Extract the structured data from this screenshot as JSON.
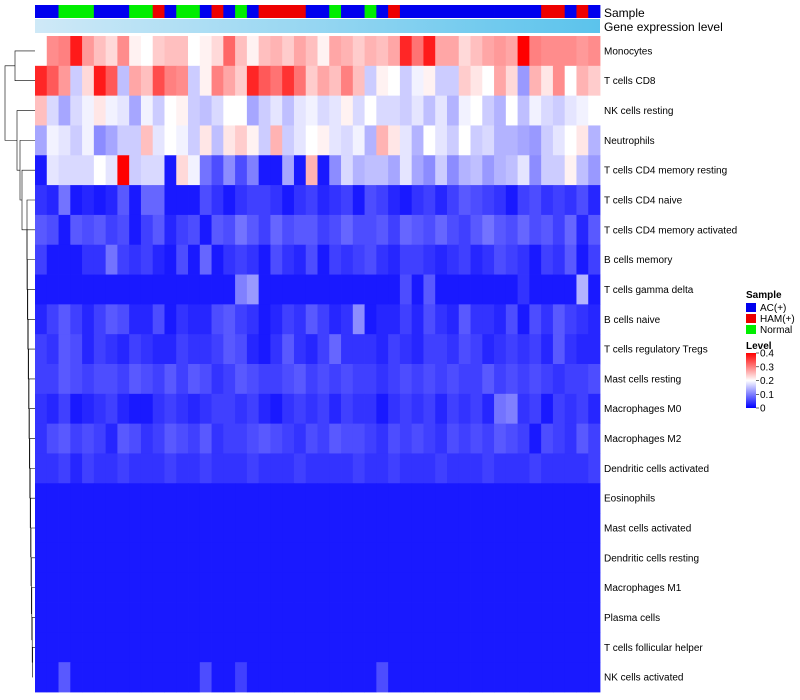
{
  "chart_data": {
    "type": "heatmap",
    "top_annotation_labels": [
      "Sample",
      "Gene expression level"
    ],
    "row_labels": [
      "Monocytes",
      "T cells CD8",
      "NK cells resting",
      "Neutrophils",
      "T cells CD4 memory resting",
      "T cells CD4 naive",
      "T cells CD4 memory activated",
      "B cells memory",
      "T cells gamma delta",
      "B cells naive",
      "T cells regulatory  Tregs",
      "Mast cells resting",
      "Macrophages M0",
      "Macrophages M2",
      "Dendritic cells activated",
      "Eosinophils",
      "Mast cells activated",
      "Dendritic cells resting",
      "Macrophages M1",
      "Plasma cells",
      "T cells follicular helper",
      "NK cells activated"
    ],
    "samples": [
      "AC",
      "AC",
      "N",
      "N",
      "N",
      "AC",
      "AC",
      "AC",
      "N",
      "N",
      "HAM",
      "AC",
      "N",
      "N",
      "AC",
      "HAM",
      "AC",
      "N",
      "AC",
      "HAM",
      "HAM",
      "HAM",
      "HAM",
      "AC",
      "AC",
      "N",
      "AC",
      "AC",
      "N",
      "AC",
      "HAM",
      "AC",
      "AC",
      "AC",
      "AC",
      "AC",
      "AC",
      "AC",
      "AC",
      "AC",
      "AC",
      "AC",
      "AC",
      "HAM",
      "HAM",
      "AC",
      "HAM",
      "AC"
    ],
    "sample_color_map": {
      "AC": "#0000ee",
      "HAM": "#ee0000",
      "N": "#00ee00"
    },
    "legend_sample": {
      "title": "Sample",
      "items": [
        {
          "label": "AC(+)",
          "color": "#0000ee"
        },
        {
          "label": "HAM(+)",
          "color": "#ee0000"
        },
        {
          "label": "Normal",
          "color": "#00ee00"
        }
      ]
    },
    "legend_level": {
      "title": "Level",
      "ticks": [
        "0.4",
        "0.3",
        "0.2",
        "0.1",
        "0"
      ],
      "tick_values": [
        0.4,
        0.3,
        0.2,
        0.1,
        0
      ],
      "range": [
        0,
        0.4
      ],
      "colors": [
        "#0000ff",
        "#ffffff",
        "#ff0000"
      ]
    },
    "gene_expression_bar": {
      "light": "#cfe9f7",
      "dark": "#5bc3ec"
    },
    "values": [
      [
        0.2,
        0.29,
        0.3,
        0.38,
        0.28,
        0.25,
        0.23,
        0.29,
        0.21,
        0.2,
        0.24,
        0.25,
        0.25,
        0.2,
        0.21,
        0.23,
        0.32,
        0.25,
        0.21,
        0.25,
        0.26,
        0.24,
        0.27,
        0.25,
        0.21,
        0.27,
        0.26,
        0.24,
        0.26,
        0.25,
        0.27,
        0.37,
        0.31,
        0.38,
        0.27,
        0.27,
        0.23,
        0.25,
        0.27,
        0.28,
        0.27,
        0.4,
        0.3,
        0.29,
        0.29,
        0.29,
        0.28,
        0.29
      ],
      [
        0.37,
        0.33,
        0.28,
        0.16,
        0.23,
        0.38,
        0.33,
        0.15,
        0.27,
        0.25,
        0.34,
        0.3,
        0.29,
        0.16,
        0.21,
        0.3,
        0.27,
        0.24,
        0.37,
        0.33,
        0.31,
        0.36,
        0.31,
        0.24,
        0.27,
        0.25,
        0.3,
        0.25,
        0.16,
        0.21,
        0.2,
        0.16,
        0.19,
        0.21,
        0.16,
        0.16,
        0.24,
        0.22,
        0.2,
        0.27,
        0.23,
        0.12,
        0.26,
        0.22,
        0.29,
        0.2,
        0.26,
        0.24
      ],
      [
        0.25,
        0.17,
        0.13,
        0.17,
        0.19,
        0.22,
        0.19,
        0.18,
        0.13,
        0.19,
        0.16,
        0.2,
        0.21,
        0.16,
        0.15,
        0.17,
        0.2,
        0.2,
        0.13,
        0.16,
        0.18,
        0.15,
        0.18,
        0.19,
        0.17,
        0.18,
        0.21,
        0.17,
        0.2,
        0.17,
        0.17,
        0.16,
        0.18,
        0.15,
        0.18,
        0.14,
        0.19,
        0.2,
        0.16,
        0.14,
        0.2,
        0.15,
        0.19,
        0.17,
        0.16,
        0.18,
        0.19,
        0.2
      ],
      [
        0.13,
        0.19,
        0.18,
        0.16,
        0.19,
        0.11,
        0.13,
        0.16,
        0.16,
        0.25,
        0.18,
        0.2,
        0.19,
        0.16,
        0.22,
        0.15,
        0.22,
        0.24,
        0.21,
        0.16,
        0.26,
        0.16,
        0.18,
        0.2,
        0.21,
        0.18,
        0.17,
        0.19,
        0.14,
        0.26,
        0.22,
        0.18,
        0.14,
        0.2,
        0.18,
        0.16,
        0.2,
        0.16,
        0.17,
        0.14,
        0.14,
        0.13,
        0.12,
        0.16,
        0.18,
        0.2,
        0.22,
        0.14
      ],
      [
        0.02,
        0.18,
        0.17,
        0.17,
        0.17,
        0.2,
        0.18,
        0.4,
        0.16,
        0.17,
        0.17,
        0.02,
        0.23,
        0.19,
        0.09,
        0.06,
        0.11,
        0.06,
        0.1,
        0.02,
        0.02,
        0.13,
        0.02,
        0.26,
        0.02,
        0.11,
        0.17,
        0.14,
        0.15,
        0.15,
        0.13,
        0.18,
        0.13,
        0.11,
        0.16,
        0.11,
        0.14,
        0.15,
        0.12,
        0.14,
        0.15,
        0.18,
        0.11,
        0.16,
        0.16,
        0.21,
        0.15,
        0.12
      ],
      [
        0.04,
        0.03,
        0.09,
        0.02,
        0.03,
        0.02,
        0.03,
        0.07,
        0.02,
        0.08,
        0.08,
        0.02,
        0.02,
        0.02,
        0.06,
        0.04,
        0.02,
        0.04,
        0.05,
        0.05,
        0.04,
        0.02,
        0.04,
        0.05,
        0.03,
        0.04,
        0.05,
        0.02,
        0.06,
        0.05,
        0.03,
        0.02,
        0.04,
        0.05,
        0.03,
        0.05,
        0.07,
        0.06,
        0.05,
        0.04,
        0.02,
        0.05,
        0.06,
        0.04,
        0.05,
        0.04,
        0.06,
        0.03
      ],
      [
        0.07,
        0.06,
        0.02,
        0.07,
        0.06,
        0.07,
        0.05,
        0.06,
        0.02,
        0.05,
        0.07,
        0.03,
        0.05,
        0.06,
        0.02,
        0.07,
        0.06,
        0.09,
        0.07,
        0.05,
        0.08,
        0.06,
        0.07,
        0.07,
        0.05,
        0.06,
        0.08,
        0.06,
        0.06,
        0.07,
        0.05,
        0.08,
        0.07,
        0.06,
        0.08,
        0.06,
        0.05,
        0.07,
        0.09,
        0.07,
        0.06,
        0.08,
        0.06,
        0.07,
        0.05,
        0.08,
        0.03,
        0.07
      ],
      [
        0.05,
        0.02,
        0.02,
        0.02,
        0.04,
        0.04,
        0.09,
        0.05,
        0.04,
        0.05,
        0.03,
        0.02,
        0.06,
        0.02,
        0.08,
        0.02,
        0.04,
        0.05,
        0.04,
        0.02,
        0.06,
        0.04,
        0.03,
        0.06,
        0.02,
        0.05,
        0.04,
        0.05,
        0.06,
        0.04,
        0.03,
        0.05,
        0.05,
        0.04,
        0.03,
        0.04,
        0.05,
        0.03,
        0.04,
        0.06,
        0.05,
        0.04,
        0.02,
        0.05,
        0.04,
        0.07,
        0.02,
        0.05
      ],
      [
        0.02,
        0.02,
        0.02,
        0.02,
        0.02,
        0.02,
        0.02,
        0.02,
        0.02,
        0.02,
        0.02,
        0.02,
        0.02,
        0.02,
        0.02,
        0.02,
        0.02,
        0.1,
        0.12,
        0.02,
        0.02,
        0.02,
        0.02,
        0.02,
        0.02,
        0.02,
        0.02,
        0.02,
        0.02,
        0.02,
        0.02,
        0.06,
        0.02,
        0.07,
        0.02,
        0.02,
        0.02,
        0.02,
        0.02,
        0.02,
        0.02,
        0.04,
        0.02,
        0.02,
        0.02,
        0.02,
        0.14,
        0.02
      ],
      [
        0.03,
        0.05,
        0.07,
        0.05,
        0.03,
        0.05,
        0.07,
        0.06,
        0.03,
        0.03,
        0.06,
        0.02,
        0.04,
        0.03,
        0.03,
        0.06,
        0.07,
        0.05,
        0.04,
        0.02,
        0.03,
        0.05,
        0.04,
        0.07,
        0.05,
        0.03,
        0.04,
        0.11,
        0.02,
        0.03,
        0.03,
        0.05,
        0.03,
        0.06,
        0.04,
        0.03,
        0.07,
        0.04,
        0.04,
        0.03,
        0.06,
        0.02,
        0.06,
        0.04,
        0.07,
        0.05,
        0.04,
        0.03
      ],
      [
        0.05,
        0.04,
        0.07,
        0.06,
        0.03,
        0.05,
        0.04,
        0.03,
        0.05,
        0.04,
        0.03,
        0.03,
        0.05,
        0.04,
        0.04,
        0.05,
        0.07,
        0.06,
        0.03,
        0.02,
        0.04,
        0.07,
        0.04,
        0.03,
        0.05,
        0.08,
        0.04,
        0.04,
        0.04,
        0.03,
        0.05,
        0.04,
        0.03,
        0.05,
        0.05,
        0.04,
        0.06,
        0.05,
        0.03,
        0.04,
        0.05,
        0.04,
        0.05,
        0.03,
        0.07,
        0.04,
        0.03,
        0.03
      ],
      [
        0.05,
        0.05,
        0.07,
        0.06,
        0.05,
        0.06,
        0.06,
        0.05,
        0.07,
        0.06,
        0.05,
        0.07,
        0.05,
        0.07,
        0.06,
        0.04,
        0.05,
        0.07,
        0.06,
        0.05,
        0.05,
        0.06,
        0.07,
        0.05,
        0.06,
        0.05,
        0.06,
        0.05,
        0.05,
        0.04,
        0.05,
        0.06,
        0.05,
        0.06,
        0.05,
        0.06,
        0.05,
        0.05,
        0.07,
        0.05,
        0.06,
        0.05,
        0.06,
        0.05,
        0.04,
        0.05,
        0.05,
        0.06
      ],
      [
        0.04,
        0.03,
        0.05,
        0.02,
        0.03,
        0.04,
        0.05,
        0.03,
        0.02,
        0.02,
        0.04,
        0.05,
        0.04,
        0.03,
        0.04,
        0.05,
        0.05,
        0.04,
        0.05,
        0.03,
        0.02,
        0.04,
        0.05,
        0.04,
        0.05,
        0.03,
        0.05,
        0.04,
        0.04,
        0.02,
        0.04,
        0.05,
        0.04,
        0.05,
        0.03,
        0.05,
        0.04,
        0.05,
        0.03,
        0.09,
        0.1,
        0.04,
        0.05,
        0.02,
        0.05,
        0.04,
        0.05,
        0.03
      ],
      [
        0.04,
        0.06,
        0.07,
        0.05,
        0.06,
        0.05,
        0.03,
        0.07,
        0.06,
        0.04,
        0.05,
        0.07,
        0.06,
        0.05,
        0.07,
        0.04,
        0.05,
        0.05,
        0.06,
        0.07,
        0.06,
        0.05,
        0.04,
        0.06,
        0.05,
        0.07,
        0.06,
        0.06,
        0.05,
        0.04,
        0.06,
        0.05,
        0.06,
        0.05,
        0.04,
        0.06,
        0.05,
        0.06,
        0.05,
        0.07,
        0.06,
        0.05,
        0.02,
        0.06,
        0.05,
        0.04,
        0.07,
        0.05
      ],
      [
        0.04,
        0.04,
        0.05,
        0.03,
        0.05,
        0.04,
        0.04,
        0.05,
        0.04,
        0.04,
        0.04,
        0.05,
        0.04,
        0.04,
        0.05,
        0.04,
        0.04,
        0.04,
        0.05,
        0.04,
        0.04,
        0.04,
        0.05,
        0.04,
        0.04,
        0.04,
        0.04,
        0.05,
        0.04,
        0.04,
        0.05,
        0.04,
        0.04,
        0.04,
        0.05,
        0.04,
        0.04,
        0.04,
        0.05,
        0.04,
        0.04,
        0.04,
        0.05,
        0.04,
        0.04,
        0.04,
        0.04,
        0.05
      ],
      [
        0.02,
        0.02,
        0.02,
        0.02,
        0.02,
        0.02,
        0.02,
        0.02,
        0.02,
        0.02,
        0.02,
        0.02,
        0.02,
        0.02,
        0.02,
        0.02,
        0.02,
        0.02,
        0.02,
        0.02,
        0.02,
        0.02,
        0.02,
        0.02,
        0.02,
        0.02,
        0.02,
        0.02,
        0.02,
        0.02,
        0.02,
        0.02,
        0.02,
        0.02,
        0.02,
        0.02,
        0.02,
        0.02,
        0.02,
        0.02,
        0.02,
        0.02,
        0.02,
        0.02,
        0.02,
        0.02,
        0.02,
        0.02
      ],
      [
        0.02,
        0.02,
        0.02,
        0.02,
        0.02,
        0.02,
        0.02,
        0.02,
        0.02,
        0.02,
        0.02,
        0.02,
        0.02,
        0.02,
        0.02,
        0.02,
        0.02,
        0.02,
        0.02,
        0.02,
        0.02,
        0.02,
        0.02,
        0.02,
        0.02,
        0.02,
        0.02,
        0.02,
        0.02,
        0.02,
        0.02,
        0.02,
        0.02,
        0.02,
        0.02,
        0.02,
        0.02,
        0.02,
        0.02,
        0.02,
        0.02,
        0.02,
        0.02,
        0.02,
        0.02,
        0.02,
        0.02,
        0.02
      ],
      [
        0.02,
        0.02,
        0.02,
        0.02,
        0.02,
        0.02,
        0.02,
        0.02,
        0.02,
        0.02,
        0.02,
        0.02,
        0.02,
        0.02,
        0.02,
        0.02,
        0.02,
        0.02,
        0.02,
        0.02,
        0.02,
        0.02,
        0.02,
        0.02,
        0.02,
        0.02,
        0.02,
        0.02,
        0.02,
        0.02,
        0.02,
        0.02,
        0.02,
        0.02,
        0.02,
        0.02,
        0.02,
        0.02,
        0.02,
        0.02,
        0.02,
        0.02,
        0.02,
        0.02,
        0.02,
        0.02,
        0.02,
        0.02
      ],
      [
        0.02,
        0.02,
        0.02,
        0.02,
        0.02,
        0.02,
        0.02,
        0.02,
        0.02,
        0.02,
        0.02,
        0.02,
        0.02,
        0.02,
        0.02,
        0.02,
        0.02,
        0.02,
        0.02,
        0.02,
        0.02,
        0.02,
        0.02,
        0.02,
        0.02,
        0.02,
        0.02,
        0.02,
        0.02,
        0.02,
        0.02,
        0.02,
        0.02,
        0.02,
        0.02,
        0.02,
        0.02,
        0.02,
        0.02,
        0.02,
        0.02,
        0.02,
        0.02,
        0.02,
        0.02,
        0.02,
        0.02,
        0.02
      ],
      [
        0.02,
        0.02,
        0.02,
        0.02,
        0.02,
        0.02,
        0.02,
        0.02,
        0.02,
        0.02,
        0.02,
        0.02,
        0.02,
        0.02,
        0.02,
        0.02,
        0.02,
        0.02,
        0.02,
        0.02,
        0.02,
        0.02,
        0.02,
        0.02,
        0.02,
        0.02,
        0.02,
        0.02,
        0.02,
        0.02,
        0.02,
        0.02,
        0.02,
        0.02,
        0.02,
        0.02,
        0.02,
        0.02,
        0.02,
        0.02,
        0.02,
        0.02,
        0.02,
        0.02,
        0.02,
        0.02,
        0.02,
        0.02
      ],
      [
        0.02,
        0.02,
        0.02,
        0.02,
        0.02,
        0.02,
        0.02,
        0.02,
        0.02,
        0.02,
        0.02,
        0.02,
        0.02,
        0.02,
        0.02,
        0.02,
        0.02,
        0.02,
        0.02,
        0.02,
        0.02,
        0.02,
        0.02,
        0.02,
        0.02,
        0.02,
        0.02,
        0.02,
        0.02,
        0.02,
        0.02,
        0.02,
        0.02,
        0.02,
        0.02,
        0.02,
        0.02,
        0.02,
        0.02,
        0.02,
        0.02,
        0.02,
        0.02,
        0.02,
        0.02,
        0.02,
        0.02,
        0.02
      ],
      [
        0.02,
        0.02,
        0.07,
        0.02,
        0.02,
        0.02,
        0.02,
        0.02,
        0.02,
        0.02,
        0.02,
        0.02,
        0.02,
        0.02,
        0.06,
        0.02,
        0.02,
        0.05,
        0.02,
        0.02,
        0.02,
        0.02,
        0.02,
        0.02,
        0.02,
        0.02,
        0.02,
        0.02,
        0.02,
        0.06,
        0.02,
        0.02,
        0.02,
        0.02,
        0.02,
        0.02,
        0.02,
        0.02,
        0.02,
        0.02,
        0.02,
        0.02,
        0.02,
        0.02,
        0.02,
        0.02,
        0.02,
        0.02
      ]
    ]
  }
}
